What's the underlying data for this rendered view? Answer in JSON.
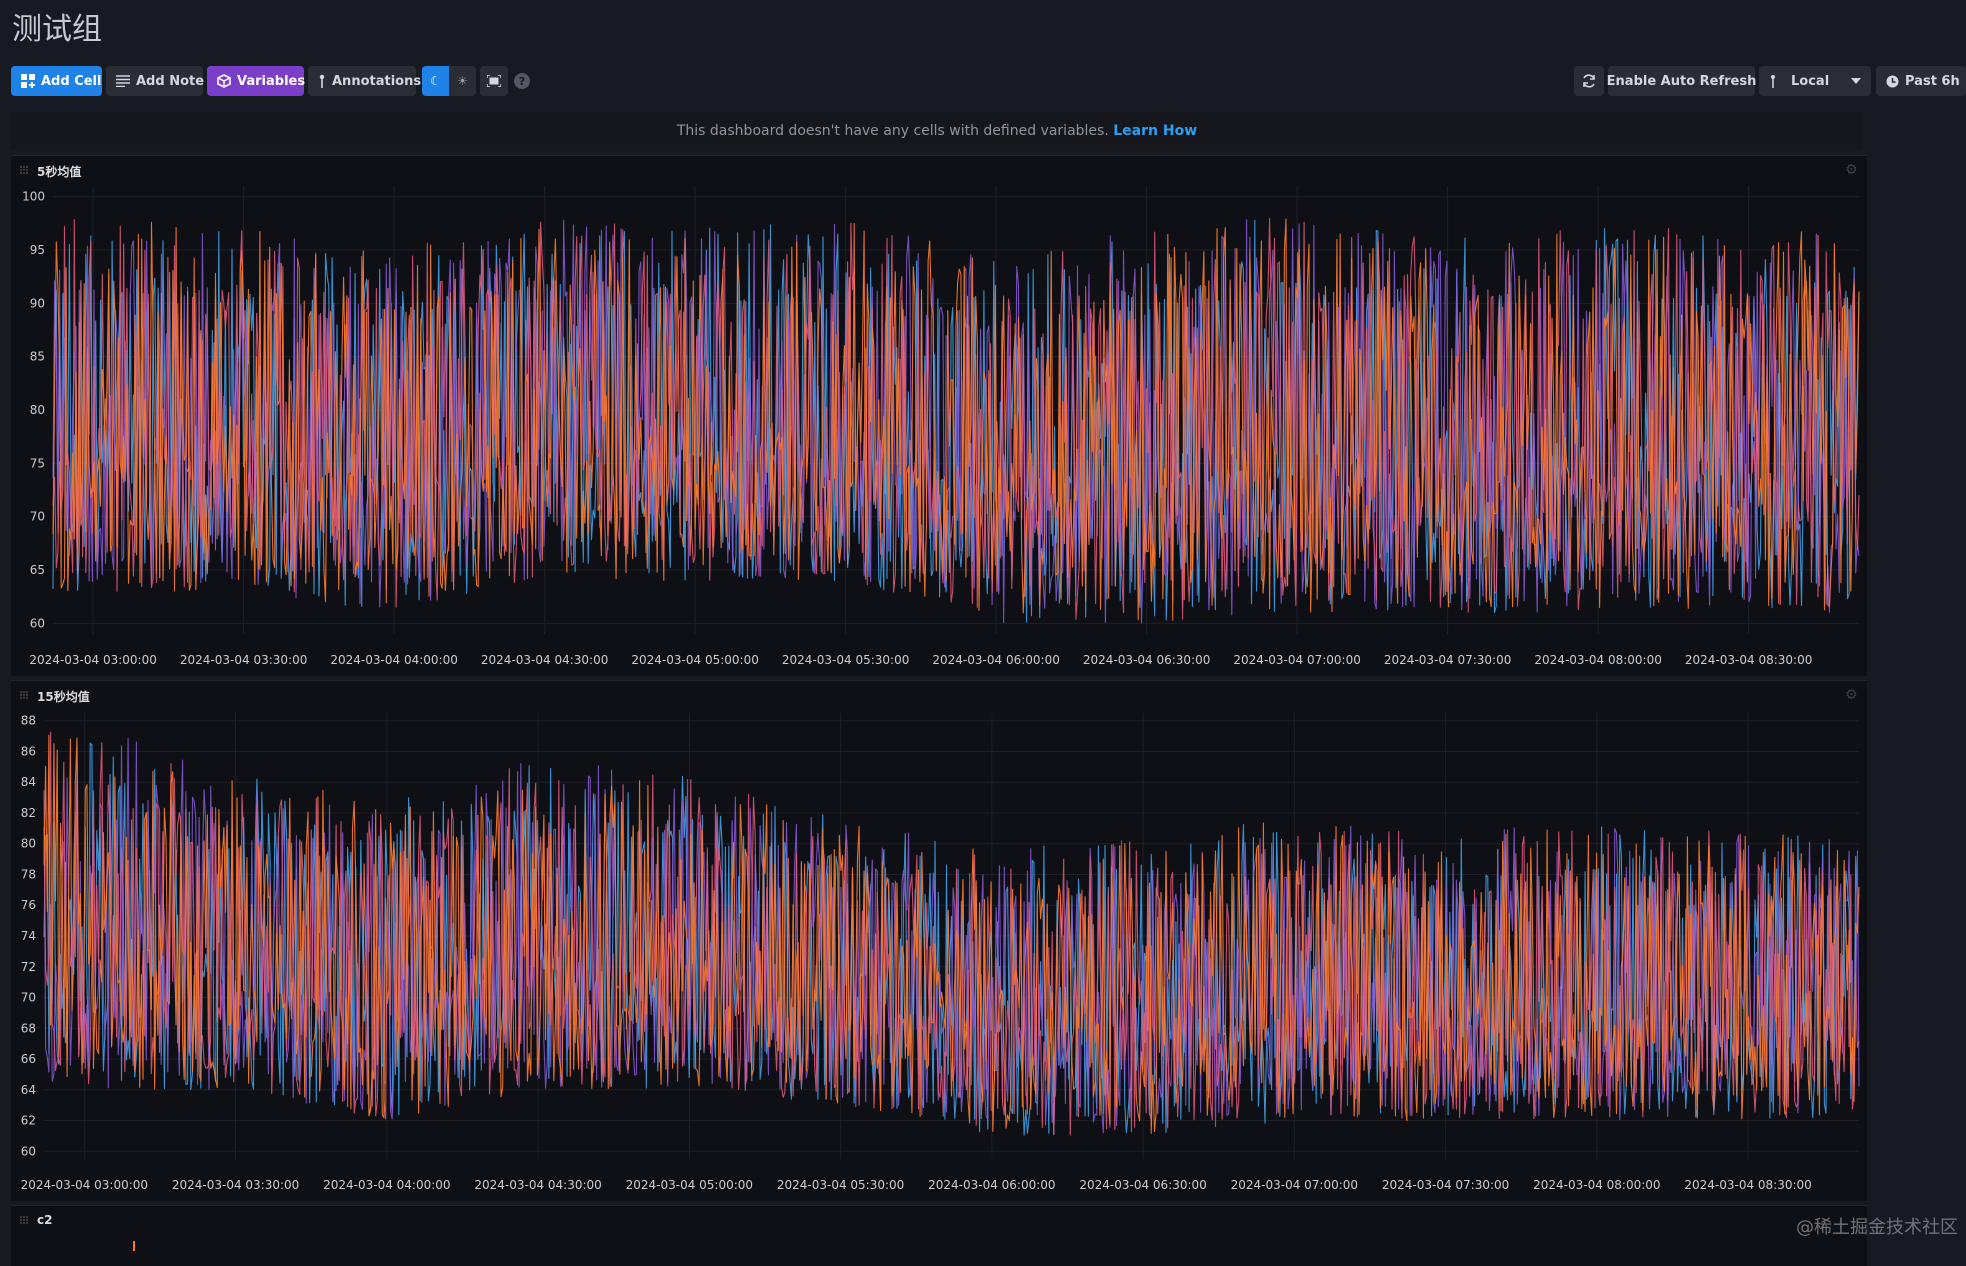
{
  "dashboard": {
    "title": "测试组"
  },
  "toolbar": {
    "add_cell": "Add Cell",
    "add_note": "Add Note",
    "variables": "Variables",
    "annotations": "Annotations",
    "auto_refresh": "Enable Auto Refresh",
    "timezone": "Local",
    "time_range": "Past 6h",
    "help": "?"
  },
  "notice": {
    "text": "This dashboard doesn't have any cells with defined variables.",
    "link": "Learn How"
  },
  "colors": {
    "accent_blue": "#1f82e6",
    "accent_purple": "#7b3ec9",
    "series_orange": "#f8792b",
    "series_pink": "#e65a7a",
    "series_purple": "#8a5ad8",
    "series_blue": "#3f9fe6"
  },
  "icons": [
    "add-cell-icon",
    "note-icon",
    "variables-icon",
    "annotation-icon",
    "moon-icon",
    "sun-icon",
    "fullscreen-icon",
    "help-icon",
    "refresh-icon",
    "timezone-icon",
    "chevron-down-icon",
    "clock-icon",
    "gear-icon",
    "drag-handle-icon"
  ],
  "chart_data": [
    {
      "type": "line",
      "title": "5秒均值",
      "x_tick_labels": [
        "2024-03-04 03:00:00",
        "2024-03-04 03:30:00",
        "2024-03-04 04:00:00",
        "2024-03-04 04:30:00",
        "2024-03-04 05:00:00",
        "2024-03-04 05:30:00",
        "2024-03-04 06:00:00",
        "2024-03-04 06:30:00",
        "2024-03-04 07:00:00",
        "2024-03-04 07:30:00",
        "2024-03-04 08:00:00",
        "2024-03-04 08:30:00"
      ],
      "xlim": [
        "2024-03-04 02:52:00",
        "2024-03-04 08:52:00"
      ],
      "y_ticks": [
        100,
        95,
        90,
        85,
        80,
        75,
        70,
        65,
        60
      ],
      "ylim": [
        59,
        101
      ],
      "grid": true,
      "envelope": {
        "times": [
          "03:00",
          "03:30",
          "04:00",
          "04:30",
          "05:00",
          "05:30",
          "06:00",
          "06:30",
          "07:00",
          "07:30",
          "08:00",
          "08:30"
        ],
        "high": [
          97,
          96,
          94,
          97,
          96,
          97,
          93,
          96,
          97,
          95,
          96,
          96
        ],
        "low": [
          63,
          63,
          61,
          64,
          64,
          64,
          60,
          60,
          61,
          61,
          61,
          61
        ]
      }
    },
    {
      "type": "line",
      "title": "15秒均值",
      "x_tick_labels": [
        "2024-03-04 03:00:00",
        "2024-03-04 03:30:00",
        "2024-03-04 04:00:00",
        "2024-03-04 04:30:00",
        "2024-03-04 05:00:00",
        "2024-03-04 05:30:00",
        "2024-03-04 06:00:00",
        "2024-03-04 06:30:00",
        "2024-03-04 07:00:00",
        "2024-03-04 07:30:00",
        "2024-03-04 08:00:00",
        "2024-03-04 08:30:00"
      ],
      "xlim": [
        "2024-03-04 02:52:00",
        "2024-03-04 08:52:00"
      ],
      "y_ticks": [
        88,
        86,
        84,
        82,
        80,
        78,
        76,
        74,
        72,
        70,
        68,
        66,
        64,
        62,
        60
      ],
      "ylim": [
        59.5,
        88.5
      ],
      "grid": true,
      "envelope": {
        "times": [
          "03:00",
          "03:30",
          "04:00",
          "04:30",
          "05:00",
          "05:30",
          "06:00",
          "06:30",
          "07:00",
          "07:30",
          "08:00",
          "08:30"
        ],
        "high": [
          87,
          84,
          82,
          85,
          84,
          81,
          79,
          80,
          81,
          80,
          81,
          80
        ],
        "low": [
          64,
          64,
          62,
          64,
          64,
          63,
          61,
          61,
          62,
          62,
          62,
          62
        ]
      }
    }
  ],
  "cell3": {
    "title": "c2"
  },
  "watermark": "@稀土掘金技术社区"
}
